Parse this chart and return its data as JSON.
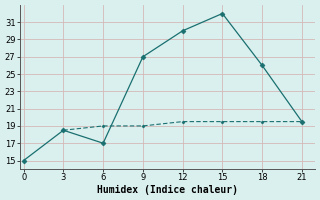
{
  "line1_x": [
    0,
    3,
    6,
    9,
    12,
    15,
    18,
    21
  ],
  "line1_y": [
    15,
    18.5,
    17,
    27,
    30,
    32,
    26,
    19.5
  ],
  "line2_x": [
    3,
    6,
    9,
    12,
    15,
    18,
    21
  ],
  "line2_y": [
    18.5,
    19,
    19,
    19.5,
    19.5,
    19.5,
    19.5
  ],
  "line_color": "#1a7070",
  "bg_color": "#daf0ee",
  "grid_color": "#d4b8b8",
  "xlabel": "Humidex (Indice chaleur)",
  "xlabel_fontsize": 7,
  "xticks": [
    0,
    3,
    6,
    9,
    12,
    15,
    18,
    21
  ],
  "yticks": [
    15,
    17,
    19,
    21,
    23,
    25,
    27,
    29,
    31
  ],
  "ylim": [
    14.0,
    33.0
  ],
  "xlim": [
    -0.3,
    22.0
  ]
}
